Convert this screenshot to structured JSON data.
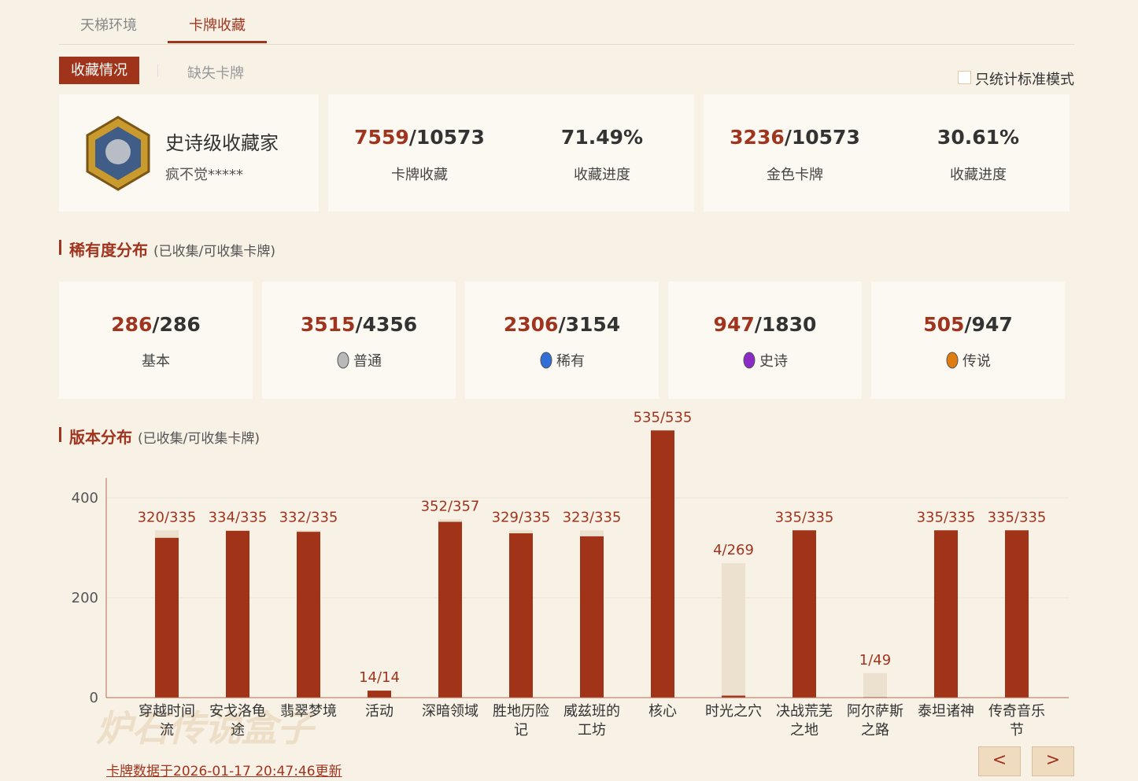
{
  "tabs": [
    "天梯环境",
    "卡牌收藏"
  ],
  "subtabs": [
    "收藏情况",
    "缺失卡牌"
  ],
  "standard_only": "只统计标准模式",
  "profile": {
    "title": "史诗级收藏家",
    "user": "疯不觉*****"
  },
  "stats": [
    {
      "owned": "7559",
      "total": "/10573",
      "label": "卡牌收藏",
      "progress": "71.49%",
      "progress_label": "收藏进度"
    },
    {
      "owned": "3236",
      "total": "/10573",
      "label": "金色卡牌",
      "progress": "30.61%",
      "progress_label": "收藏进度"
    }
  ],
  "rarity_section": {
    "title": "稀有度分布",
    "note": "(已收集/可收集卡牌)"
  },
  "rarity": [
    {
      "owned": "286",
      "total": "/286",
      "name": "基本"
    },
    {
      "owned": "3515",
      "total": "/4356",
      "name": "普通"
    },
    {
      "owned": "2306",
      "total": "/3154",
      "name": "稀有"
    },
    {
      "owned": "947",
      "total": "/1830",
      "name": "史诗"
    },
    {
      "owned": "505",
      "total": "/947",
      "name": "传说"
    }
  ],
  "version_section": {
    "title": "版本分布",
    "note": "(已收集/可收集卡牌)"
  },
  "chart_data": {
    "type": "bar",
    "categories": [
      "穿越时间流",
      "安戈洛龟途",
      "翡翠梦境",
      "活动",
      "深暗领域",
      "胜地历险记",
      "威兹班的工坊",
      "核心",
      "时光之穴",
      "决战荒芜之地",
      "阿尔萨斯之路",
      "泰坦诸神",
      "传奇音乐节"
    ],
    "series": [
      {
        "name": "可收集",
        "color": "#ece1cf",
        "values": [
          335,
          335,
          335,
          14,
          357,
          335,
          335,
          535,
          269,
          335,
          49,
          335,
          335
        ]
      },
      {
        "name": "已收集",
        "color": "#a03318",
        "values": [
          320,
          334,
          332,
          14,
          352,
          329,
          323,
          535,
          4,
          335,
          1,
          335,
          335
        ]
      }
    ],
    "value_labels": [
      "320/335",
      "334/335",
      "332/335",
      "14/14",
      "352/357",
      "329/335",
      "323/335",
      "535/535",
      "4/269",
      "335/335",
      "1/49",
      "335/335",
      "335/335"
    ],
    "ylim": [
      0,
      440
    ],
    "yticks": [
      0,
      200,
      400
    ],
    "grid": true
  },
  "footer": "卡牌数据于2026-01-17 20:47:46更新",
  "watermark": "炉石传说盒子",
  "pager": [
    "<",
    ">"
  ]
}
